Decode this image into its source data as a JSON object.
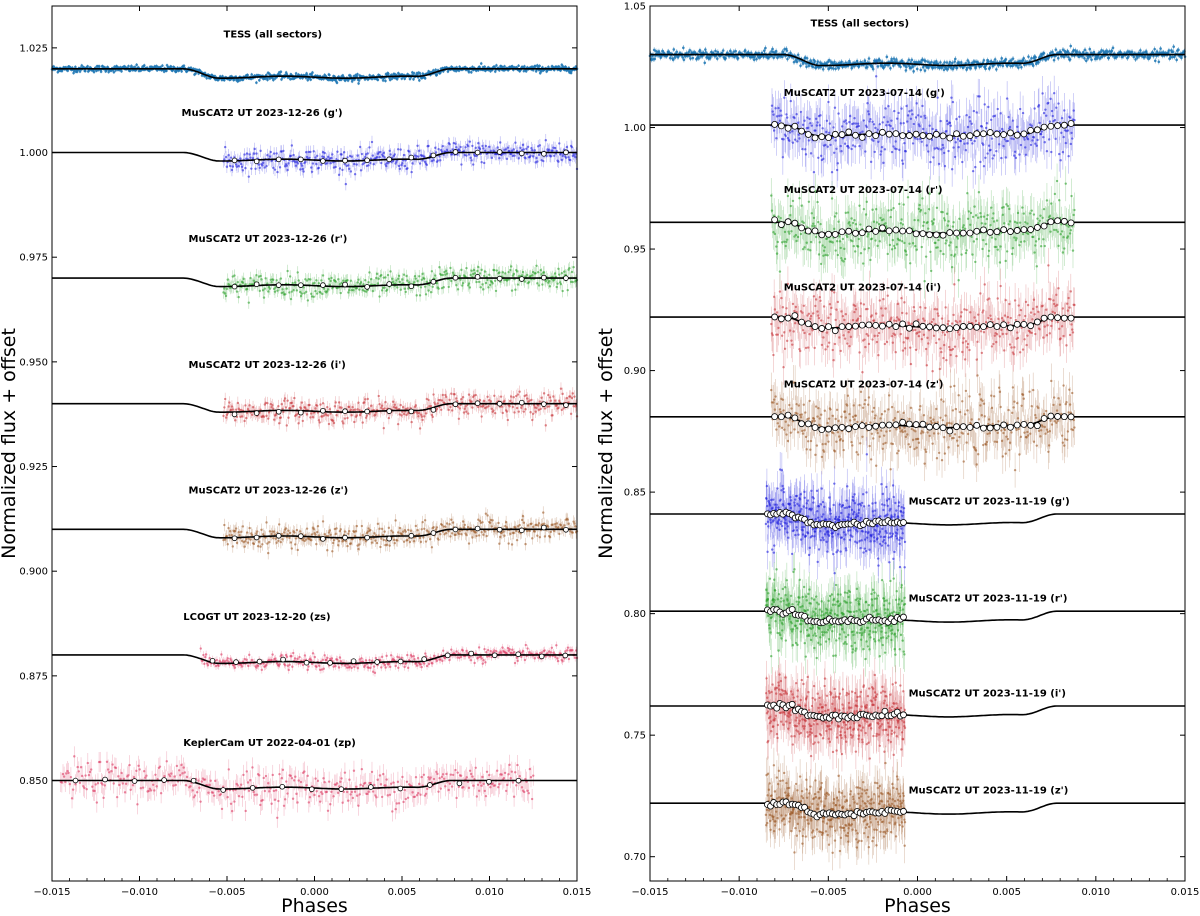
{
  "chart_data": [
    {
      "type": "scatter",
      "xlabel": "Phases",
      "ylabel": "Normalized flux + offset",
      "xlim": [
        -0.015,
        0.015
      ],
      "ylim": [
        0.826,
        1.035
      ],
      "xticks": [
        -0.015,
        -0.01,
        -0.005,
        0.0,
        0.005,
        0.01,
        0.015
      ],
      "xtick_labels": [
        "−0.015",
        "−0.010",
        "−0.005",
        "0.000",
        "0.005",
        "0.010",
        "0.015"
      ],
      "yticks": [
        0.85,
        0.875,
        0.9,
        0.925,
        0.95,
        0.975,
        1.0,
        1.025
      ],
      "ytick_labels": [
        "0.850",
        "0.875",
        "0.900",
        "0.925",
        "0.950",
        "0.975",
        "1.000",
        "1.025"
      ],
      "series": [
        {
          "name": "TESS (all sectors)",
          "color": "#1f77b4",
          "offset": 1.02,
          "depth": 0.002,
          "x_start": -0.015,
          "x_end": 0.015,
          "scatter": 0.0007,
          "label_x": -0.0052,
          "label_y": 1.0275,
          "bin_points": false,
          "dense": true
        },
        {
          "name": "MuSCAT2 UT 2023-12-26 (g')",
          "color": "#2222dd",
          "offset": 1.0,
          "depth": 0.0018,
          "x_start": -0.0052,
          "x_end": 0.015,
          "scatter": 0.0025,
          "label_x": -0.0076,
          "label_y": 1.0087,
          "bin_points": true,
          "dense": false
        },
        {
          "name": "MuSCAT2 UT 2023-12-26 (r')",
          "color": "#2ca02c",
          "offset": 0.97,
          "depth": 0.0018,
          "x_start": -0.0052,
          "x_end": 0.015,
          "scatter": 0.0025,
          "label_x": -0.0072,
          "label_y": 0.9786,
          "bin_points": true,
          "dense": false
        },
        {
          "name": "MuSCAT2 UT 2023-12-26 (i')",
          "color": "#c8383e",
          "offset": 0.94,
          "depth": 0.0018,
          "x_start": -0.0052,
          "x_end": 0.015,
          "scatter": 0.0025,
          "label_x": -0.0072,
          "label_y": 0.9485,
          "bin_points": true,
          "dense": false
        },
        {
          "name": "MuSCAT2 UT 2023-12-26 (z')",
          "color": "#9c5a28",
          "offset": 0.91,
          "depth": 0.0018,
          "x_start": -0.0052,
          "x_end": 0.015,
          "scatter": 0.0025,
          "label_x": -0.0072,
          "label_y": 0.9185,
          "bin_points": true,
          "dense": false
        },
        {
          "name": "LCOGT UT 2023-12-20 (zs)",
          "color": "#dc3c64",
          "offset": 0.88,
          "depth": 0.0018,
          "x_start": -0.0065,
          "x_end": 0.015,
          "scatter": 0.0015,
          "label_x": -0.0075,
          "label_y": 0.8883,
          "bin_points": true,
          "dense": false
        },
        {
          "name": "KeplerCam UT 2022-04-01 (zp)",
          "color": "#dc3c64",
          "offset": 0.85,
          "depth": 0.0018,
          "x_start": -0.0145,
          "x_end": 0.0125,
          "scatter": 0.004,
          "label_x": -0.0075,
          "label_y": 0.8582,
          "bin_points": true,
          "dense": false
        }
      ]
    },
    {
      "type": "scatter",
      "xlabel": "Phases",
      "ylabel": "Normalized flux + offset",
      "xlim": [
        -0.015,
        0.015
      ],
      "ylim": [
        0.69,
        1.05
      ],
      "xticks": [
        -0.015,
        -0.01,
        -0.005,
        0.0,
        0.005,
        0.01,
        0.015
      ],
      "xtick_labels": [
        "−0.015",
        "−0.010",
        "−0.005",
        "0.000",
        "0.005",
        "0.010",
        "0.015"
      ],
      "yticks": [
        0.7,
        0.75,
        0.8,
        0.85,
        0.9,
        0.95,
        1.0,
        1.05
      ],
      "ytick_labels": [
        "0.70",
        "0.75",
        "0.80",
        "0.85",
        "0.90",
        "0.95",
        "1.00",
        "1.05"
      ],
      "series": [
        {
          "name": "TESS (all sectors)",
          "color": "#1f77b4",
          "offset": 1.03,
          "depth": 0.004,
          "x_start": -0.015,
          "x_end": 0.015,
          "scatter": 0.0018,
          "label_x": -0.006,
          "label_y": 1.0415,
          "bin_points": false,
          "dense": true
        },
        {
          "name": "MuSCAT2 UT 2023-07-14 (g')",
          "color": "#2222dd",
          "offset": 1.001,
          "depth": 0.004,
          "x_start": -0.0082,
          "x_end": 0.0088,
          "scatter": 0.012,
          "label_x": -0.0075,
          "label_y": 1.013,
          "bin_points": true,
          "dense": false
        },
        {
          "name": "MuSCAT2 UT 2023-07-14 (r')",
          "color": "#2ca02c",
          "offset": 0.961,
          "depth": 0.004,
          "x_start": -0.0082,
          "x_end": 0.0088,
          "scatter": 0.012,
          "label_x": -0.0075,
          "label_y": 0.973,
          "bin_points": true,
          "dense": false
        },
        {
          "name": "MuSCAT2 UT 2023-07-14 (i')",
          "color": "#c8383e",
          "offset": 0.922,
          "depth": 0.004,
          "x_start": -0.0082,
          "x_end": 0.0088,
          "scatter": 0.012,
          "label_x": -0.0075,
          "label_y": 0.933,
          "bin_points": true,
          "dense": false
        },
        {
          "name": "MuSCAT2 UT 2023-07-14 (z')",
          "color": "#9c5a28",
          "offset": 0.881,
          "depth": 0.004,
          "x_start": -0.0082,
          "x_end": 0.0088,
          "scatter": 0.012,
          "label_x": -0.0075,
          "label_y": 0.893,
          "bin_points": true,
          "dense": false
        },
        {
          "name": "MuSCAT2 UT 2023-11-19 (g')",
          "color": "#2222dd",
          "offset": 0.841,
          "depth": 0.004,
          "x_start": -0.0085,
          "x_end": -0.0007,
          "scatter": 0.012,
          "label_x": -0.0005,
          "label_y": 0.845,
          "bin_points": true,
          "dense": false
        },
        {
          "name": "MuSCAT2 UT 2023-11-19 (r')",
          "color": "#2ca02c",
          "offset": 0.801,
          "depth": 0.004,
          "x_start": -0.0085,
          "x_end": -0.0007,
          "scatter": 0.012,
          "label_x": -0.0005,
          "label_y": 0.805,
          "bin_points": true,
          "dense": false
        },
        {
          "name": "MuSCAT2 UT 2023-11-19 (i')",
          "color": "#c8383e",
          "offset": 0.762,
          "depth": 0.004,
          "x_start": -0.0085,
          "x_end": -0.0007,
          "scatter": 0.012,
          "label_x": -0.0005,
          "label_y": 0.766,
          "bin_points": true,
          "dense": false
        },
        {
          "name": "MuSCAT2 UT 2023-11-19 (z')",
          "color": "#9c5a28",
          "offset": 0.722,
          "depth": 0.004,
          "x_start": -0.0085,
          "x_end": -0.0007,
          "scatter": 0.012,
          "label_x": -0.0005,
          "label_y": 0.726,
          "bin_points": true,
          "dense": false
        }
      ]
    }
  ]
}
